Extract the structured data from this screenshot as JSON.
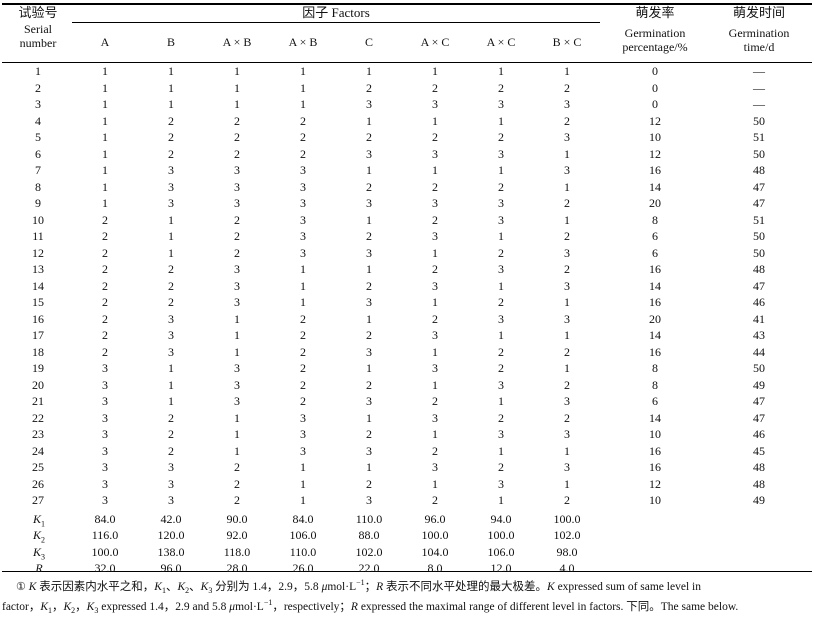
{
  "header": {
    "serial_cn": "试验号",
    "serial_en1": "Serial",
    "serial_en2": "number",
    "factors_group": "因子 Factors",
    "factor_columns": [
      "A",
      "B",
      "A × B",
      "A × B",
      "C",
      "A × C",
      "A × C",
      "B × C"
    ],
    "germ_pct_cn": "萌发率",
    "germ_pct_en1": "Germination",
    "germ_pct_en2": "percentage/%",
    "germ_time_cn": "萌发时间",
    "germ_time_en1": "Germination",
    "germ_time_en2": "time/d"
  },
  "rows": [
    {
      "n": "1",
      "f": [
        "1",
        "1",
        "1",
        "1",
        "1",
        "1",
        "1",
        "1"
      ],
      "pct": "0",
      "time": "—"
    },
    {
      "n": "2",
      "f": [
        "1",
        "1",
        "1",
        "1",
        "2",
        "2",
        "2",
        "2"
      ],
      "pct": "0",
      "time": "—"
    },
    {
      "n": "3",
      "f": [
        "1",
        "1",
        "1",
        "1",
        "3",
        "3",
        "3",
        "3"
      ],
      "pct": "0",
      "time": "—"
    },
    {
      "n": "4",
      "f": [
        "1",
        "2",
        "2",
        "2",
        "1",
        "1",
        "1",
        "2"
      ],
      "pct": "12",
      "time": "50"
    },
    {
      "n": "5",
      "f": [
        "1",
        "2",
        "2",
        "2",
        "2",
        "2",
        "2",
        "3"
      ],
      "pct": "10",
      "time": "51"
    },
    {
      "n": "6",
      "f": [
        "1",
        "2",
        "2",
        "2",
        "3",
        "3",
        "3",
        "1"
      ],
      "pct": "12",
      "time": "50"
    },
    {
      "n": "7",
      "f": [
        "1",
        "3",
        "3",
        "3",
        "1",
        "1",
        "1",
        "3"
      ],
      "pct": "16",
      "time": "48"
    },
    {
      "n": "8",
      "f": [
        "1",
        "3",
        "3",
        "3",
        "2",
        "2",
        "2",
        "1"
      ],
      "pct": "14",
      "time": "47"
    },
    {
      "n": "9",
      "f": [
        "1",
        "3",
        "3",
        "3",
        "3",
        "3",
        "3",
        "2"
      ],
      "pct": "20",
      "time": "47"
    },
    {
      "n": "10",
      "f": [
        "2",
        "1",
        "2",
        "3",
        "1",
        "2",
        "3",
        "1"
      ],
      "pct": "8",
      "time": "51"
    },
    {
      "n": "11",
      "f": [
        "2",
        "1",
        "2",
        "3",
        "2",
        "3",
        "1",
        "2"
      ],
      "pct": "6",
      "time": "50"
    },
    {
      "n": "12",
      "f": [
        "2",
        "1",
        "2",
        "3",
        "3",
        "1",
        "2",
        "3"
      ],
      "pct": "6",
      "time": "50"
    },
    {
      "n": "13",
      "f": [
        "2",
        "2",
        "3",
        "1",
        "1",
        "2",
        "3",
        "2"
      ],
      "pct": "16",
      "time": "48"
    },
    {
      "n": "14",
      "f": [
        "2",
        "2",
        "3",
        "1",
        "2",
        "3",
        "1",
        "3"
      ],
      "pct": "14",
      "time": "47"
    },
    {
      "n": "15",
      "f": [
        "2",
        "2",
        "3",
        "1",
        "3",
        "1",
        "2",
        "1"
      ],
      "pct": "16",
      "time": "46"
    },
    {
      "n": "16",
      "f": [
        "2",
        "3",
        "1",
        "2",
        "1",
        "2",
        "3",
        "3"
      ],
      "pct": "20",
      "time": "41"
    },
    {
      "n": "17",
      "f": [
        "2",
        "3",
        "1",
        "2",
        "2",
        "3",
        "1",
        "1"
      ],
      "pct": "14",
      "time": "43"
    },
    {
      "n": "18",
      "f": [
        "2",
        "3",
        "1",
        "2",
        "3",
        "1",
        "2",
        "2"
      ],
      "pct": "16",
      "time": "44"
    },
    {
      "n": "19",
      "f": [
        "3",
        "1",
        "3",
        "2",
        "1",
        "3",
        "2",
        "1"
      ],
      "pct": "8",
      "time": "50"
    },
    {
      "n": "20",
      "f": [
        "3",
        "1",
        "3",
        "2",
        "2",
        "1",
        "3",
        "2"
      ],
      "pct": "8",
      "time": "49"
    },
    {
      "n": "21",
      "f": [
        "3",
        "1",
        "3",
        "2",
        "3",
        "2",
        "1",
        "3"
      ],
      "pct": "6",
      "time": "47"
    },
    {
      "n": "22",
      "f": [
        "3",
        "2",
        "1",
        "3",
        "1",
        "3",
        "2",
        "2"
      ],
      "pct": "14",
      "time": "47"
    },
    {
      "n": "23",
      "f": [
        "3",
        "2",
        "1",
        "3",
        "2",
        "1",
        "3",
        "3"
      ],
      "pct": "10",
      "time": "46"
    },
    {
      "n": "24",
      "f": [
        "3",
        "2",
        "1",
        "3",
        "3",
        "2",
        "1",
        "1"
      ],
      "pct": "16",
      "time": "45"
    },
    {
      "n": "25",
      "f": [
        "3",
        "3",
        "2",
        "1",
        "1",
        "3",
        "2",
        "3"
      ],
      "pct": "16",
      "time": "48"
    },
    {
      "n": "26",
      "f": [
        "3",
        "3",
        "2",
        "1",
        "2",
        "1",
        "3",
        "1"
      ],
      "pct": "12",
      "time": "48"
    },
    {
      "n": "27",
      "f": [
        "3",
        "3",
        "2",
        "1",
        "3",
        "2",
        "1",
        "2"
      ],
      "pct": "10",
      "time": "49"
    }
  ],
  "summary": [
    {
      "label": "K",
      "sub": "1",
      "vals": [
        "84.0",
        "42.0",
        "90.0",
        "84.0",
        "110.0",
        "96.0",
        "94.0",
        "100.0"
      ]
    },
    {
      "label": "K",
      "sub": "2",
      "vals": [
        "116.0",
        "120.0",
        "92.0",
        "106.0",
        "88.0",
        "100.0",
        "100.0",
        "102.0"
      ]
    },
    {
      "label": "K",
      "sub": "3",
      "vals": [
        "100.0",
        "138.0",
        "118.0",
        "110.0",
        "102.0",
        "104.0",
        "106.0",
        "98.0"
      ]
    },
    {
      "label": "R",
      "sub": "",
      "vals": [
        "32.0",
        "96.0",
        "28.0",
        "26.0",
        "22.0",
        "8.0",
        "12.0",
        "4.0"
      ]
    }
  ],
  "footnote": {
    "marker": "①",
    "line1": {
      "k": "K",
      "t1": " 表示因素内水平之和，",
      "k1": "K",
      "k1sub": "1",
      "t2": "、",
      "k2": "K",
      "k2sub": "2",
      "t3": "、",
      "k3": "K",
      "k3sub": "3",
      "t4": " 分别为 1.4，2.9，5.8 ",
      "mu": "μ",
      "unit": "mol·L",
      "sup": "−1",
      "t5": "；",
      "r": "R",
      "t6": " 表示不同水平处理的最大极差。",
      "k_en": "K",
      "t7": " expressed sum of same level in"
    },
    "line2": {
      "t1": "factor，",
      "k1": "K",
      "k1sub": "1",
      "t2": "，",
      "k2": "K",
      "k2sub": "2",
      "t3": "，",
      "k3": "K",
      "k3sub": "3",
      "t4": " expressed 1.4，2.9 and 5.8 ",
      "mu": "μ",
      "unit": "mol·L",
      "sup": "−1",
      "t5": "，respectively；",
      "r": "R",
      "t6": " expressed the maximal range of different level in factors. 下同。The same below."
    }
  }
}
